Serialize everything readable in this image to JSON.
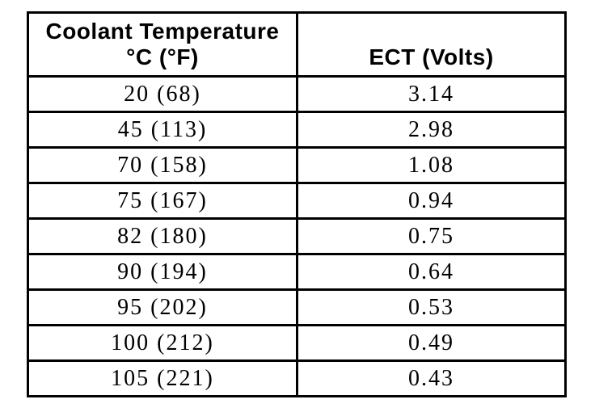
{
  "chart_data": {
    "type": "table",
    "title": "",
    "columns": [
      "Coolant Temperature °C (°F)",
      "ECT (Volts)"
    ],
    "rows": [
      [
        "20 (68)",
        "3.14"
      ],
      [
        "45 (113)",
        "2.98"
      ],
      [
        "70 (158)",
        "1.08"
      ],
      [
        "75 (167)",
        "0.94"
      ],
      [
        "82 (180)",
        "0.75"
      ],
      [
        "90 (194)",
        "0.64"
      ],
      [
        "95 (202)",
        "0.53"
      ],
      [
        "100 (212)",
        "0.49"
      ],
      [
        "105 (221)",
        "0.43"
      ]
    ],
    "temperature_c": [
      20,
      45,
      70,
      75,
      82,
      90,
      95,
      100,
      105
    ],
    "temperature_f": [
      68,
      113,
      158,
      167,
      180,
      194,
      202,
      212,
      221
    ],
    "ect_volts": [
      3.14,
      2.98,
      1.08,
      0.94,
      0.75,
      0.64,
      0.53,
      0.49,
      0.43
    ]
  },
  "table": {
    "header": {
      "col1_line1": "Coolant Temperature",
      "col1_line2": "°C (°F)",
      "col2": "ECT (Volts)"
    },
    "rows": [
      {
        "temp": "20 (68)",
        "volts": "3.14"
      },
      {
        "temp": "45 (113)",
        "volts": "2.98"
      },
      {
        "temp": "70 (158)",
        "volts": "1.08"
      },
      {
        "temp": "75 (167)",
        "volts": "0.94"
      },
      {
        "temp": "82 (180)",
        "volts": "0.75"
      },
      {
        "temp": "90 (194)",
        "volts": "0.64"
      },
      {
        "temp": "95 (202)",
        "volts": "0.53"
      },
      {
        "temp": "100 (212)",
        "volts": "0.49"
      },
      {
        "temp": "105 (221)",
        "volts": "0.43"
      }
    ]
  },
  "colors": {
    "border": "#000000",
    "background": "#ffffff",
    "text": "#000000"
  }
}
